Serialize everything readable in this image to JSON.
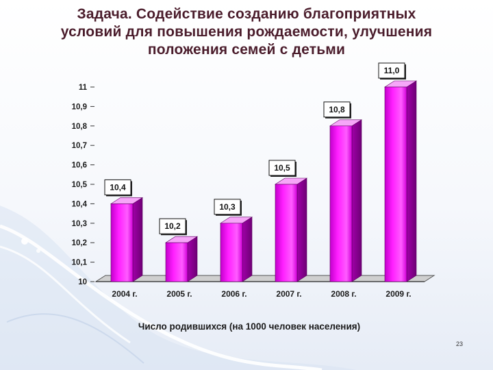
{
  "title_lines": [
    "Задача. Содействие созданию благоприятных",
    "условий для повышения рождаемости, улучшения",
    "положения семей с детьми"
  ],
  "slide_number": "23",
  "colors": {
    "bar": "#ff1fff",
    "bar_dark": "#a000a8",
    "bar_top": "#f6a6f8",
    "title": "#4a1c2b"
  },
  "chart_data": {
    "type": "bar",
    "categories": [
      "2004 г.",
      "2005 г.",
      "2006 г.",
      "2007 г.",
      "2008 г.",
      "2009 г."
    ],
    "values": [
      10.4,
      10.2,
      10.3,
      10.5,
      10.8,
      11.0
    ],
    "value_labels": [
      "10,4",
      "10,2",
      "10,3",
      "10,5",
      "10,8",
      "11,0"
    ],
    "title": "",
    "xlabel": "Число родившихся (на 1000 человек населения)",
    "ylabel": "",
    "ylim": [
      10,
      11
    ],
    "yticks": [
      {
        "v": 11,
        "label": "11"
      },
      {
        "v": 10.9,
        "label": "10,9"
      },
      {
        "v": 10.8,
        "label": "10,8"
      },
      {
        "v": 10.7,
        "label": "10,7"
      },
      {
        "v": 10.6,
        "label": "10,6"
      },
      {
        "v": 10.5,
        "label": "10,5"
      },
      {
        "v": 10.4,
        "label": "10,4"
      },
      {
        "v": 10.3,
        "label": "10,3"
      },
      {
        "v": 10.2,
        "label": "10,2"
      },
      {
        "v": 10.1,
        "label": "10,1"
      },
      {
        "v": 10,
        "label": "10"
      }
    ],
    "grid": false,
    "legend": "none"
  }
}
